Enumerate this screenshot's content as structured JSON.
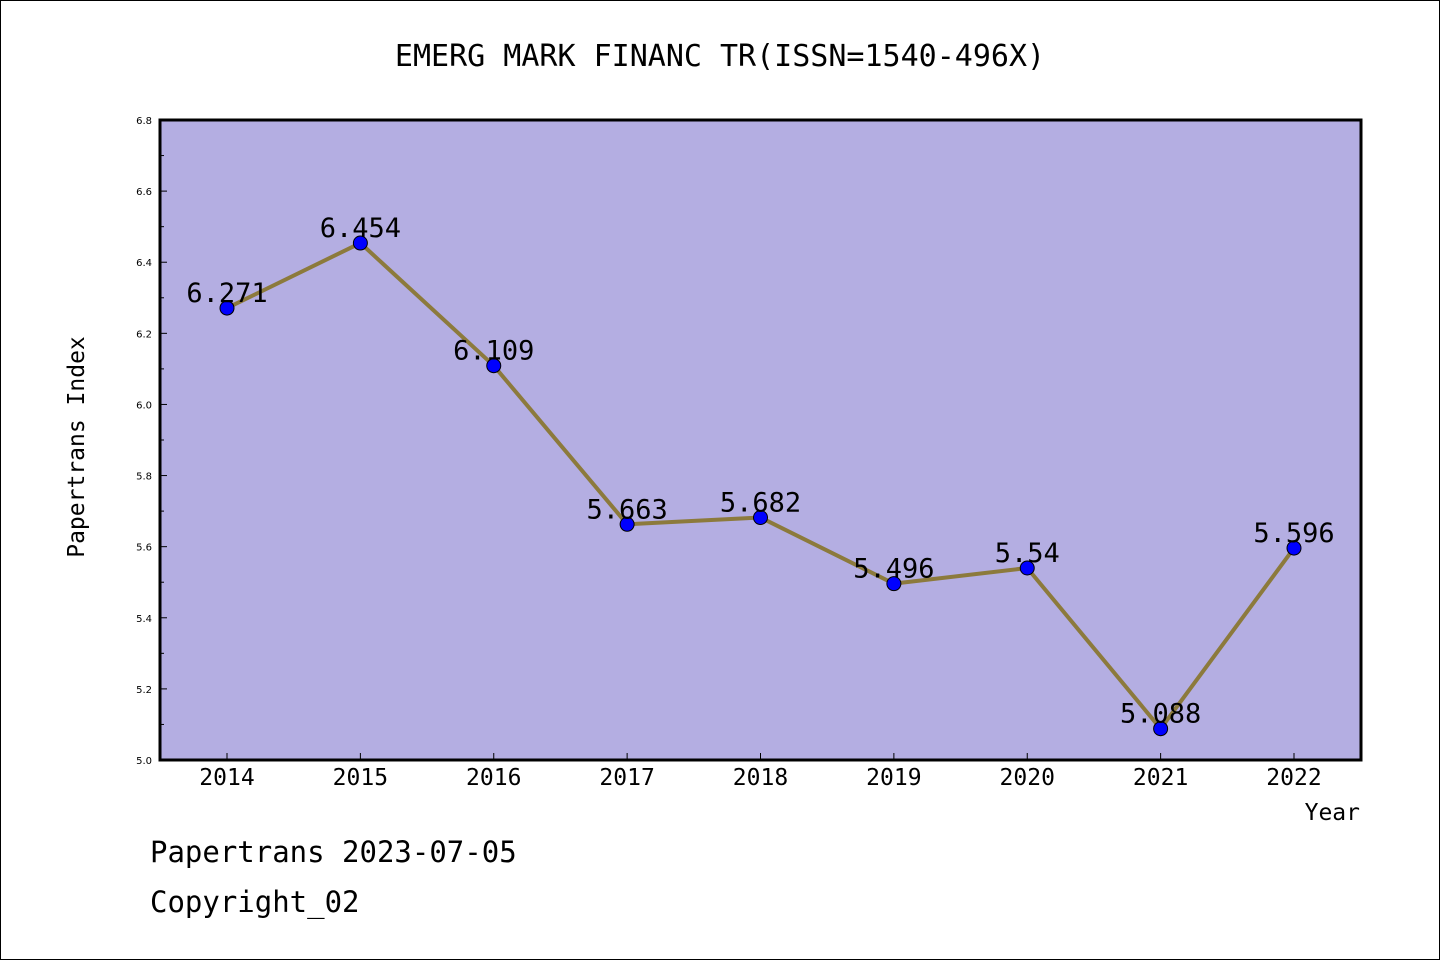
{
  "chart_data": {
    "type": "line",
    "title": "EMERG MARK FINANC TR(ISSN=1540-496X)",
    "xlabel": "Year",
    "ylabel": "Papertrans Index",
    "categories": [
      "2014",
      "2015",
      "2016",
      "2017",
      "2018",
      "2019",
      "2020",
      "2021",
      "2022"
    ],
    "series": [
      {
        "values": [
          6.271,
          6.454,
          6.109,
          5.663,
          5.682,
          5.496,
          5.54,
          5.088,
          5.596
        ],
        "data_labels": [
          "6.271",
          "6.454",
          "6.109",
          "5.663",
          "5.682",
          "5.496",
          "5.54",
          "5.088",
          "5.596"
        ]
      }
    ],
    "ylim": [
      5.0,
      6.8
    ],
    "yticks": [
      5.0,
      5.2,
      5.4,
      5.6,
      5.8,
      6.0,
      6.2,
      6.4,
      6.6,
      6.8
    ],
    "ytick_labels": [
      "5.0",
      "5.2",
      "5.4",
      "5.6",
      "5.8",
      "6.0",
      "6.2",
      "6.4",
      "6.6",
      "6.8"
    ],
    "grid": false,
    "colors": {
      "plot_background": "#b4aee2",
      "line": "#8c7a3c",
      "marker": "#0000ff"
    }
  },
  "footer": {
    "date_text": "Papertrans 2023-07-05",
    "copyright_text": "Copyright_02"
  }
}
